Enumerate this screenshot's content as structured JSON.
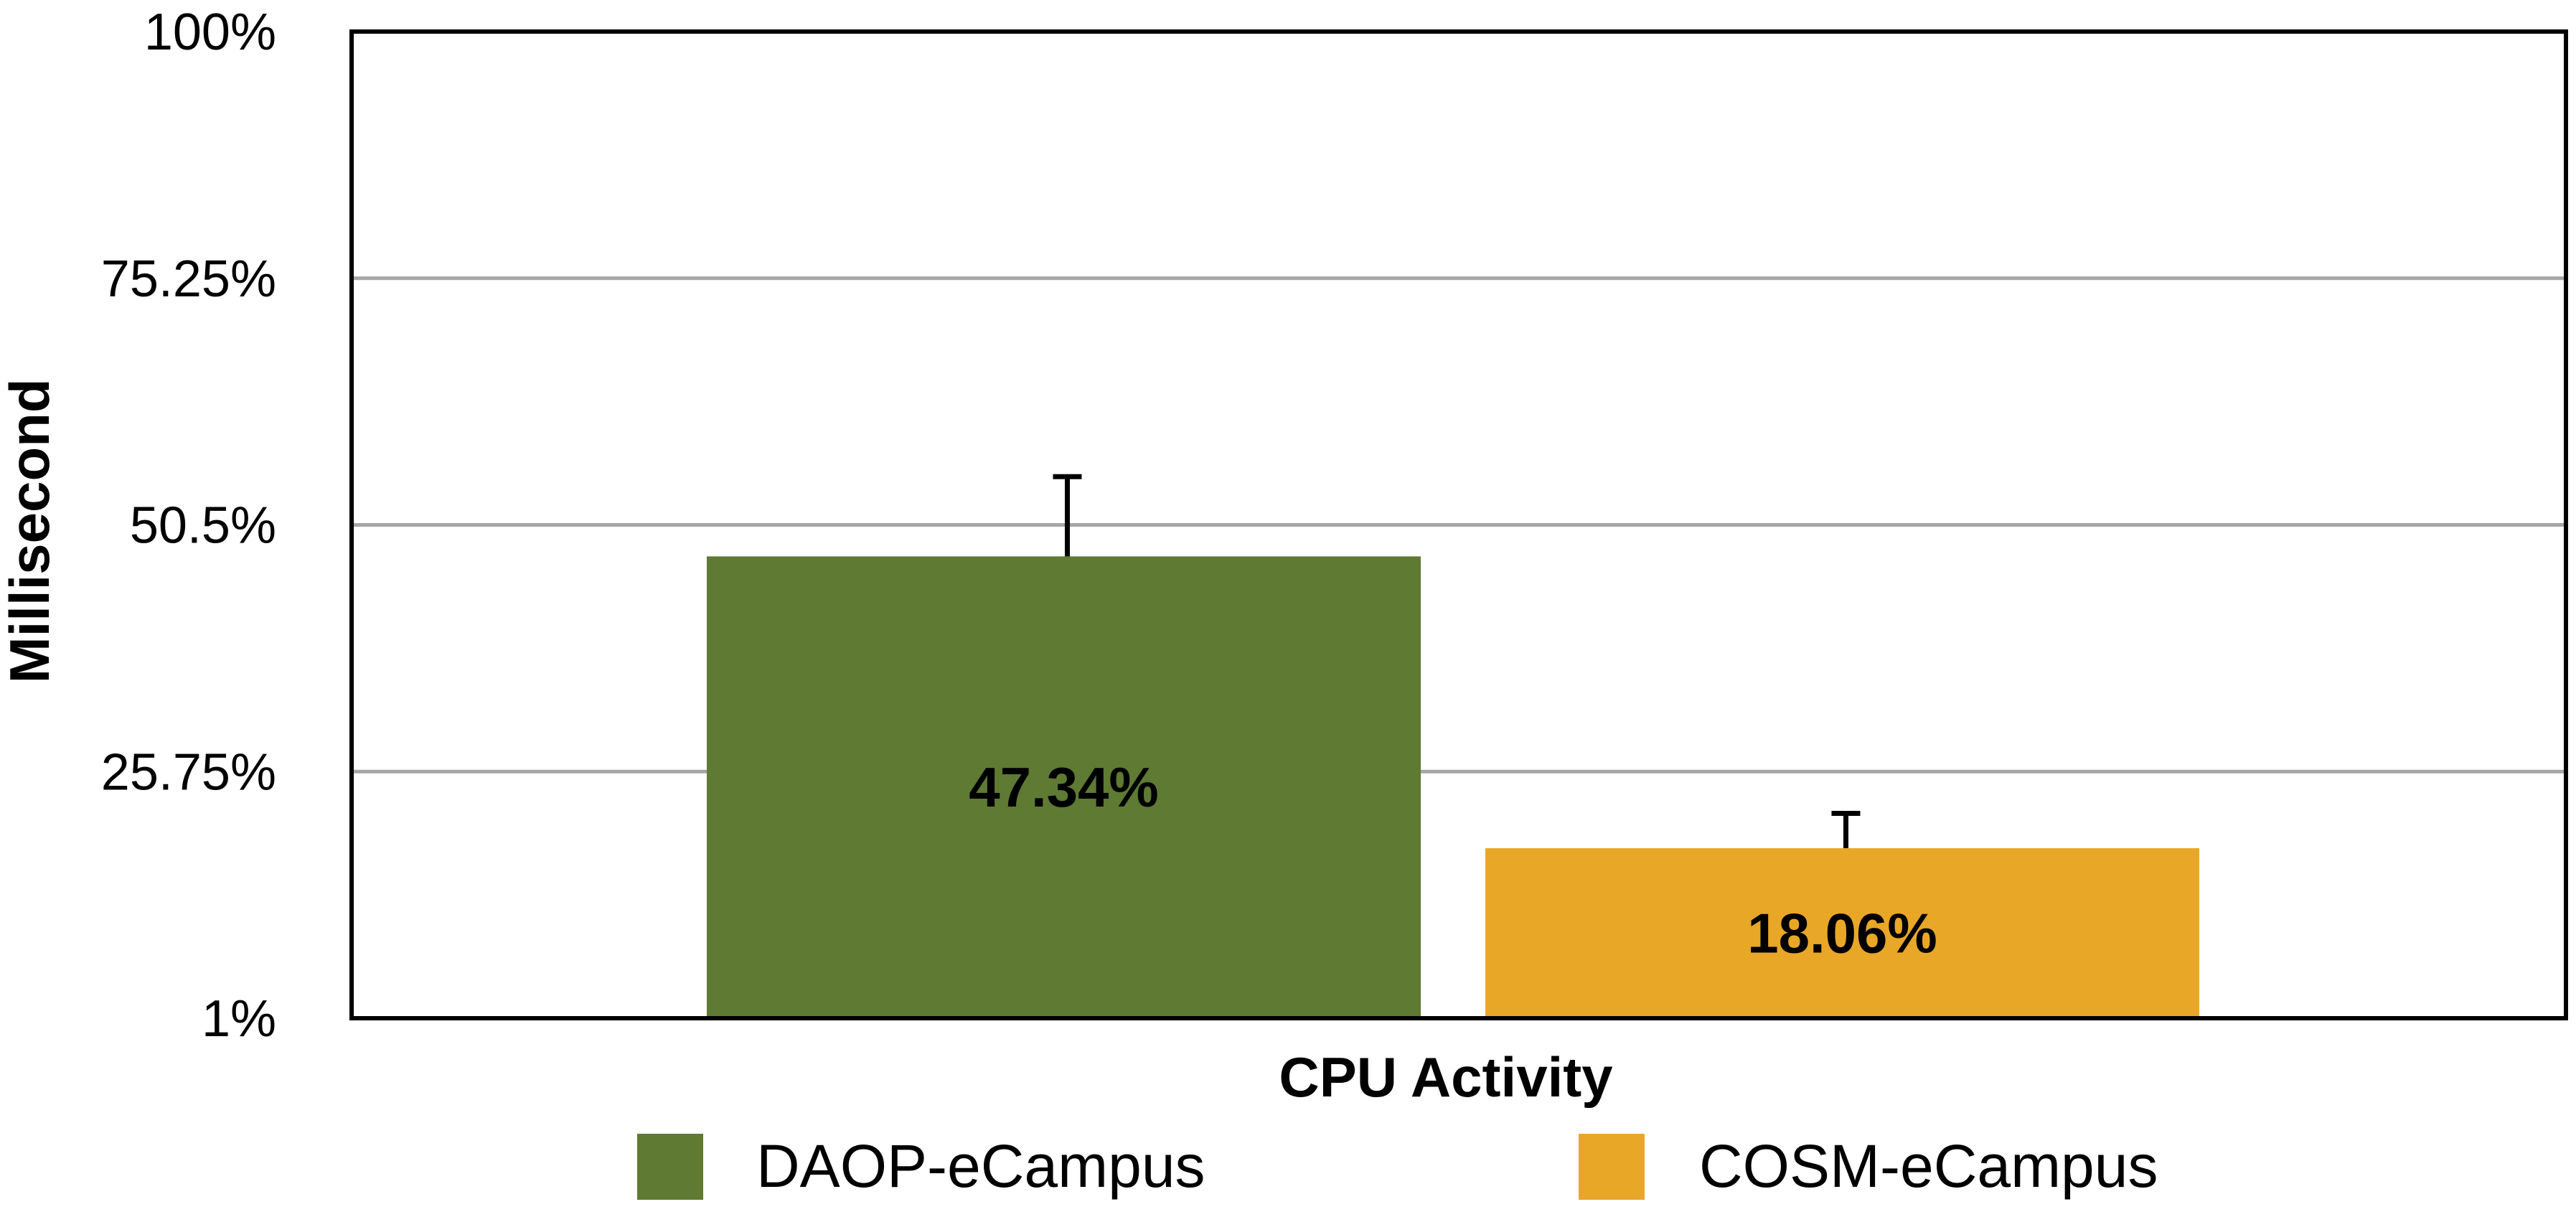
{
  "chart_data": {
    "type": "bar",
    "title": "",
    "xlabel": "CPU Activity",
    "ylabel": "Millisecond",
    "categories": [
      "CPU Activity"
    ],
    "series": [
      {
        "name": "DAOP-eCampus",
        "values": [
          47.34
        ],
        "error": [
          8.0
        ],
        "data_label": "47.34%",
        "color": "#5e7a33"
      },
      {
        "name": "COSM-eCampus",
        "values": [
          18.06
        ],
        "error": [
          3.5
        ],
        "data_label": "18.06%",
        "color": "#e9a727"
      }
    ],
    "ylim": [
      1,
      100
    ],
    "yticks": [
      1,
      25.75,
      50.5,
      75.25,
      100
    ],
    "ytick_labels": [
      "1%",
      "25.75%",
      "50.5%",
      "75.25%",
      "100%"
    ],
    "grid": true,
    "legend_position": "bottom"
  }
}
